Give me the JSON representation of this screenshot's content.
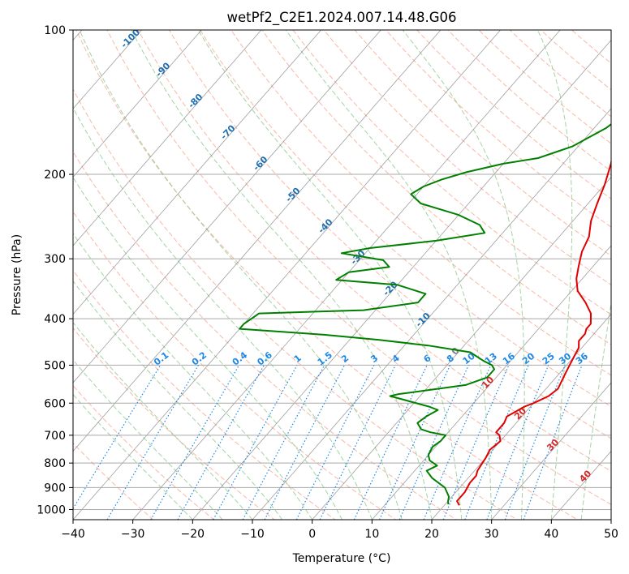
{
  "colors": {
    "temperature": "#e00000",
    "dewpoint": "#008000",
    "isotherm": "#7f7f7f",
    "isobar": "#a9a9a9",
    "dry_adiabat": "#f5a08a",
    "moist_adiabat": "#8cc98c",
    "mixing_ratio": "#1e88e5",
    "isotherm_label": "#1f6fb0",
    "isotherm_label_warm": "#d62728",
    "isotherm_label_zero": "#7f7f7f"
  },
  "chart_data": {
    "type": "line",
    "title": "wetPf2_C2E1.2024.007.14.48.G06",
    "xlabel": "Temperature (°C)",
    "ylabel": "Pressure (hPa)",
    "xlim": [
      -40,
      50
    ],
    "ylim": [
      1050,
      100
    ],
    "y_scale": "log",
    "grid": true,
    "skew_deg_per_log10_p": 70,
    "x_ticks": [
      "−40",
      "−30",
      "−20",
      "−10",
      "0",
      "10",
      "20",
      "30",
      "40",
      "50"
    ],
    "x_tick_values": [
      -40,
      -30,
      -20,
      -10,
      0,
      10,
      20,
      30,
      40,
      50
    ],
    "y_ticks": [
      "100",
      "200",
      "300",
      "400",
      "500",
      "600",
      "700",
      "800",
      "900",
      "1000"
    ],
    "y_tick_values": [
      100,
      200,
      300,
      400,
      500,
      600,
      700,
      800,
      900,
      1000
    ],
    "isotherm_labels": [
      {
        "t": -100,
        "text": "-100"
      },
      {
        "t": -90,
        "text": "-90"
      },
      {
        "t": -80,
        "text": "-80"
      },
      {
        "t": -70,
        "text": "-70"
      },
      {
        "t": -60,
        "text": "-60"
      },
      {
        "t": -50,
        "text": "-50"
      },
      {
        "t": -40,
        "text": "-40"
      },
      {
        "t": -30,
        "text": "-30"
      },
      {
        "t": -20,
        "text": "-20"
      },
      {
        "t": -10,
        "text": "-10"
      },
      {
        "t": 0,
        "text": "0"
      },
      {
        "t": 10,
        "text": "10"
      },
      {
        "t": 20,
        "text": "20"
      },
      {
        "t": 30,
        "text": "30"
      },
      {
        "t": 40,
        "text": "40"
      }
    ],
    "mixing_ratio_labels": [
      "0.1",
      "0.2",
      "0.4",
      "0.6",
      "1",
      "1.5",
      "2",
      "3",
      "4",
      "6",
      "8",
      "10",
      "13",
      "16",
      "20",
      "25",
      "30",
      "36"
    ],
    "series": [
      {
        "key": "temperature",
        "points": [
          [
            22.5,
            980
          ],
          [
            21.5,
            960
          ],
          [
            21.5,
            920
          ],
          [
            21.0,
            880
          ],
          [
            21.0,
            850
          ],
          [
            20.5,
            830
          ],
          [
            20.3,
            810
          ],
          [
            20.0,
            780
          ],
          [
            19.5,
            750
          ],
          [
            20.0,
            720
          ],
          [
            19.0,
            700
          ],
          [
            18.0,
            690
          ],
          [
            18.0,
            660
          ],
          [
            17.5,
            640
          ],
          [
            18.0,
            630
          ],
          [
            19.0,
            610
          ],
          [
            20.0,
            600
          ],
          [
            21.5,
            580
          ],
          [
            22.0,
            560
          ],
          [
            21.5,
            540
          ],
          [
            21.0,
            520
          ],
          [
            20.5,
            500
          ],
          [
            20.0,
            480
          ],
          [
            19.5,
            460
          ],
          [
            18.5,
            445
          ],
          [
            18.5,
            430
          ],
          [
            18.0,
            420
          ],
          [
            18.0,
            410
          ],
          [
            16.5,
            390
          ],
          [
            14.0,
            370
          ],
          [
            11.0,
            350
          ],
          [
            9.0,
            330
          ],
          [
            7.5,
            310
          ],
          [
            6.0,
            290
          ],
          [
            5.0,
            270
          ],
          [
            3.0,
            250
          ],
          [
            1.5,
            230
          ],
          [
            0.0,
            210
          ],
          [
            -2.0,
            190
          ],
          [
            -4.0,
            175
          ],
          [
            -5.0,
            165
          ],
          [
            -5.0,
            158
          ],
          [
            -4.5,
            150
          ],
          [
            -3.5,
            142
          ],
          [
            -3.5,
            135
          ],
          [
            -4.5,
            128
          ],
          [
            -6.0,
            120
          ],
          [
            -7.0,
            113
          ],
          [
            -8.0,
            107
          ],
          [
            -9.0,
            100
          ]
        ]
      },
      {
        "key": "dewpoint",
        "points": [
          [
            20.5,
            975
          ],
          [
            20.0,
            960
          ],
          [
            19.5,
            940
          ],
          [
            17.5,
            900
          ],
          [
            14.0,
            860
          ],
          [
            12.0,
            830
          ],
          [
            13.0,
            810
          ],
          [
            11.0,
            790
          ],
          [
            10.0,
            770
          ],
          [
            9.5,
            740
          ],
          [
            10.0,
            720
          ],
          [
            10.0,
            700
          ],
          [
            7.0,
            690
          ],
          [
            5.0,
            680
          ],
          [
            3.5,
            660
          ],
          [
            4.0,
            640
          ],
          [
            5.0,
            620
          ],
          [
            3.0,
            610
          ],
          [
            -5.0,
            580
          ],
          [
            -4.0,
            575
          ],
          [
            0.0,
            565
          ],
          [
            6.0,
            550
          ],
          [
            8.5,
            530
          ],
          [
            8.5,
            510
          ],
          [
            7.5,
            500
          ],
          [
            5.5,
            490
          ],
          [
            2.0,
            470
          ],
          [
            -6.0,
            455
          ],
          [
            -15.0,
            443
          ],
          [
            -25.0,
            432
          ],
          [
            -40.0,
            420
          ],
          [
            -40.0,
            410
          ],
          [
            -39.0,
            390
          ],
          [
            -22.0,
            384
          ],
          [
            -14.0,
            370
          ],
          [
            -14.0,
            355
          ],
          [
            -20.0,
            340
          ],
          [
            -31.0,
            332
          ],
          [
            -30.0,
            320
          ],
          [
            -24.0,
            312
          ],
          [
            -26.0,
            302
          ],
          [
            -34.0,
            292
          ],
          [
            -30.0,
            285
          ],
          [
            -20.0,
            275
          ],
          [
            -13.0,
            265
          ],
          [
            -15.0,
            255
          ],
          [
            -20.0,
            243
          ],
          [
            -28.0,
            230
          ],
          [
            -31.0,
            220
          ],
          [
            -30.0,
            212
          ],
          [
            -28.0,
            205
          ],
          [
            -25.0,
            198
          ],
          [
            -20.0,
            190
          ],
          [
            -15.0,
            185
          ],
          [
            -11.0,
            175
          ],
          [
            -8.0,
            160
          ],
          [
            -7.0,
            150
          ],
          [
            -8.5,
            140
          ],
          [
            -7.0,
            132
          ],
          [
            -4.5,
            125
          ],
          [
            -2.0,
            118
          ],
          [
            0.5,
            110
          ],
          [
            3.0,
            102
          ],
          [
            3.5,
            100
          ]
        ]
      }
    ]
  }
}
